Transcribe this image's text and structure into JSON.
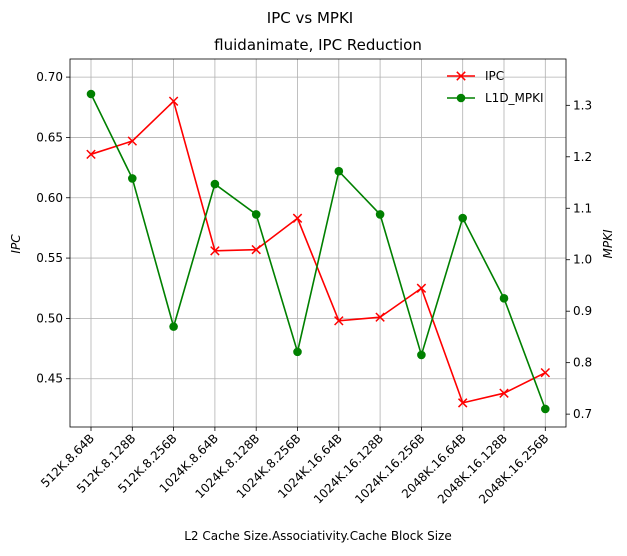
{
  "chart_data": {
    "type": "line",
    "suptitle": "IPC vs MPKI",
    "title": "fluidanimate, IPC Reduction",
    "xlabel": "L2 Cache Size.Associativity.Cache Block Size",
    "ylabel_left": "IPC",
    "ylabel_right": "MPKI",
    "categories": [
      "512K.8.64B",
      "512K.8.128B",
      "512K.8.256B",
      "1024K.8.64B",
      "1024K.8.128B",
      "1024K.8.256B",
      "1024K.16.64B",
      "1024K.16.128B",
      "1024K.16.256B",
      "2048K.16.64B",
      "2048K.16.128B",
      "2048K.16.256B"
    ],
    "grid": true,
    "legend_position": "top-right",
    "ylim_left": [
      0.41,
      0.715
    ],
    "ylim_right": [
      0.675,
      1.39
    ],
    "yticks_left": [
      "0.45",
      "0.50",
      "0.55",
      "0.60",
      "0.65",
      "0.70"
    ],
    "yticks_right": [
      "0.7",
      "0.8",
      "0.9",
      "1.0",
      "1.1",
      "1.2",
      "1.3"
    ],
    "series": [
      {
        "name": "IPC",
        "axis": "left",
        "color": "#ff0000",
        "marker": "x",
        "values": [
          0.636,
          0.647,
          0.68,
          0.556,
          0.557,
          0.583,
          0.498,
          0.501,
          0.525,
          0.43,
          0.438,
          0.455
        ]
      },
      {
        "name": "L1D_MPKI",
        "axis": "right",
        "color": "#008000",
        "marker": "o",
        "values": [
          1.322,
          1.158,
          0.87,
          1.147,
          1.088,
          0.821,
          1.172,
          1.088,
          0.815,
          1.081,
          0.925,
          0.71
        ]
      }
    ]
  }
}
